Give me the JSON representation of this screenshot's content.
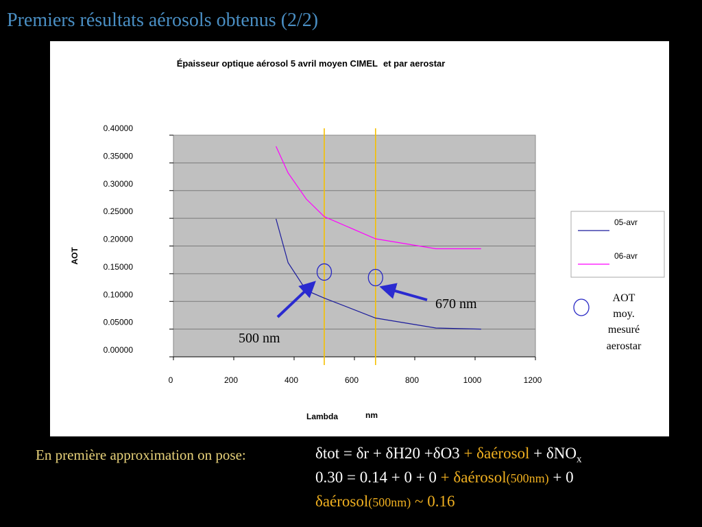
{
  "slide": {
    "title": "Premiers résultats aérosols obtenus (2/2)"
  },
  "chart_data": {
    "type": "line",
    "title": "Épaisseur optique aérosol 5 avril moyen CIMEL",
    "title_suffix": "et par aerostar",
    "xlabel": "Lambda",
    "xlabel_unit": "nm",
    "ylabel": "AOT",
    "xlim": [
      0,
      1200
    ],
    "ylim": [
      0,
      0.4
    ],
    "x_ticks": [
      "0",
      "200",
      "400",
      "600",
      "800",
      "1000",
      "1200"
    ],
    "y_ticks": [
      "0.00000",
      "0.05000",
      "0.10000",
      "0.15000",
      "0.20000",
      "0.25000",
      "0.30000",
      "0.35000",
      "0.40000"
    ],
    "grid": true,
    "legend_position": "right",
    "series": [
      {
        "name": "05-avr",
        "color": "#1a1a9c",
        "x": [
          340,
          380,
          440,
          500,
          670,
          870,
          1020
        ],
        "y": [
          0.249,
          0.17,
          0.12,
          0.106,
          0.07,
          0.052,
          0.05
        ]
      },
      {
        "name": "06-avr",
        "color": "#ff00ff",
        "x": [
          340,
          380,
          440,
          500,
          670,
          870,
          1020
        ],
        "y": [
          0.38,
          0.332,
          0.285,
          0.253,
          0.213,
          0.195,
          0.195
        ]
      }
    ],
    "vertical_lines": [
      {
        "x": 500,
        "color": "#f5c000"
      },
      {
        "x": 670,
        "color": "#f5c000"
      }
    ],
    "aerostar_points": [
      {
        "x": 500,
        "y": 0.153
      },
      {
        "x": 670,
        "y": 0.143
      }
    ],
    "aerostar_legend": [
      "AOT",
      "moy.",
      "mesuré",
      "aerostar"
    ],
    "annotations": [
      {
        "label": "500 nm",
        "target_x": 500,
        "target_y": 0.14
      },
      {
        "label": "670 nm",
        "target_x": 680,
        "target_y": 0.138
      }
    ]
  },
  "equations": {
    "intro": "En première approximation on pose:",
    "line1": {
      "a": "δtot = δr + δH20 +δO3",
      "b": "+ δaérosol",
      "c": "+ δNO",
      "c_sub": "x"
    },
    "line2": {
      "a": "0.30 = 0.14 + 0  +  0",
      "b": "+ δaérosol",
      "b_small": "(500nm)",
      "c": "+  0"
    },
    "line3": {
      "a": "δaérosol",
      "a_small": "(500nm)",
      "b": "~ 0.16"
    }
  }
}
